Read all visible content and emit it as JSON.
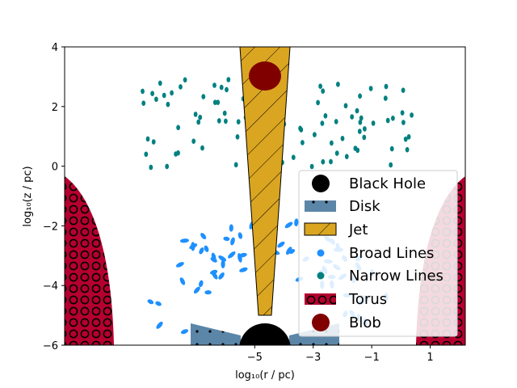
{
  "figure": {
    "xlabel": "log₁₀(r / pc)",
    "ylabel": "log₁₀(z / pc)",
    "xlim": [
      -11.5,
      2.2
    ],
    "ylim": [
      -6,
      4
    ],
    "x_ticks": [
      {
        "value": -5,
        "label": "−5"
      },
      {
        "value": -3,
        "label": "−3"
      },
      {
        "value": -1,
        "label": "−1"
      },
      {
        "value": 1,
        "label": "1"
      }
    ],
    "y_ticks": [
      {
        "value": 4,
        "label": "4"
      },
      {
        "value": 2,
        "label": "2"
      },
      {
        "value": 0,
        "label": "0"
      },
      {
        "value": -2,
        "label": "−2"
      },
      {
        "value": -4,
        "label": "−4"
      },
      {
        "value": -6,
        "label": "−6"
      }
    ]
  },
  "legend": {
    "placement": "lower-right",
    "items": [
      {
        "key": "black_hole",
        "label": "Black Hole"
      },
      {
        "key": "disk",
        "label": "Disk"
      },
      {
        "key": "jet",
        "label": "Jet"
      },
      {
        "key": "broad_lines",
        "label": "Broad Lines"
      },
      {
        "key": "narrow_lines",
        "label": "Narrow Lines"
      },
      {
        "key": "torus",
        "label": "Torus"
      },
      {
        "key": "blob",
        "label": "Blob"
      }
    ]
  },
  "colors": {
    "black_hole": "#000000",
    "disk": "#5b86a8",
    "jet": "#daa520",
    "broad_lines": "#1e90ff",
    "narrow_lines": "#008080",
    "torus": "#b5002f",
    "blob": "#800000"
  }
}
